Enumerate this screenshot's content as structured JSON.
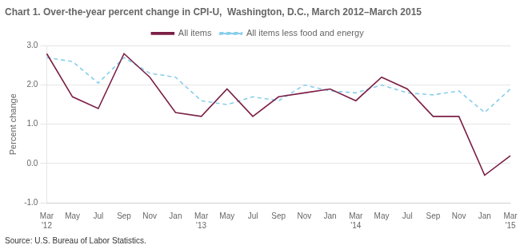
{
  "chart_data": {
    "type": "line",
    "title": "Chart 1. Over-the-year percent change in CPI-U,  Washington, D.C., March 2012–March 2015",
    "y_label": "Percent change",
    "annotations": [
      "Source: U.S. Bureau of Labor Statistics."
    ],
    "categories": [
      "Mar\n'12",
      "May",
      "Jul",
      "Sep",
      "Nov",
      "Jan",
      "Mar\n'13",
      "May",
      "Jul",
      "Sep",
      "Nov",
      "Jan",
      "Mar\n'14",
      "May",
      "Jul",
      "Sep",
      "Nov",
      "Jan",
      "Mar\n'15"
    ],
    "series": [
      {
        "name": "All items",
        "color": "#7B1F46",
        "line_style": "solid",
        "marker": "none",
        "values": [
          2.8,
          1.7,
          1.4,
          2.8,
          2.2,
          1.3,
          1.2,
          1.9,
          1.2,
          1.7,
          1.8,
          1.9,
          1.6,
          2.2,
          1.9,
          1.2,
          1.2,
          -0.3,
          0.2
        ]
      },
      {
        "name": "All items less food and energy",
        "color": "#87CEEB",
        "line_style": "dashed",
        "marker": "none",
        "values": [
          2.7,
          2.6,
          2.05,
          2.7,
          2.3,
          2.2,
          1.6,
          1.5,
          1.7,
          1.6,
          2.0,
          1.85,
          1.8,
          2.0,
          1.8,
          1.75,
          1.85,
          1.3,
          1.9
        ]
      }
    ],
    "ylim": [
      -1.0,
      3.0
    ],
    "yticks": [
      {
        "value": -1.0,
        "label": "-1.0"
      },
      {
        "value": 0.0,
        "label": "0.0"
      },
      {
        "value": 1.0,
        "label": "1.0"
      },
      {
        "value": 2.0,
        "label": "2.0"
      },
      {
        "value": 3.0,
        "label": "3.0"
      }
    ],
    "grid": true,
    "legend": "top"
  }
}
